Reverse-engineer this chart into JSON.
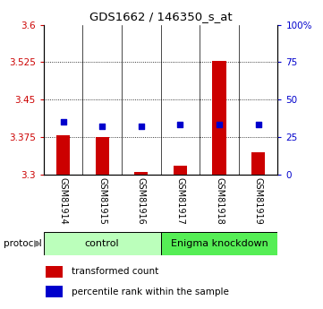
{
  "title": "GDS1662 / 146350_s_at",
  "samples": [
    "GSM81914",
    "GSM81915",
    "GSM81916",
    "GSM81917",
    "GSM81918",
    "GSM81919"
  ],
  "red_values": [
    3.378,
    3.376,
    3.305,
    3.318,
    3.527,
    3.345
  ],
  "blue_values": [
    35.5,
    32.5,
    32.0,
    33.5,
    33.5,
    33.5
  ],
  "ylim_left": [
    3.3,
    3.6
  ],
  "ylim_right": [
    0,
    100
  ],
  "left_ticks": [
    3.3,
    3.375,
    3.45,
    3.525,
    3.6
  ],
  "right_ticks": [
    0,
    25,
    50,
    75,
    100
  ],
  "right_tick_labels": [
    "0",
    "25",
    "50",
    "75",
    "100%"
  ],
  "control_label": "control",
  "knockdown_label": "Enigma knockdown",
  "protocol_label": "protocol",
  "legend_red": "transformed count",
  "legend_blue": "percentile rank within the sample",
  "bar_color": "#CC0000",
  "dot_color": "#0000CC",
  "control_bg": "#BBFFBB",
  "knockdown_bg": "#55EE55",
  "sample_bg": "#D0D0D0"
}
